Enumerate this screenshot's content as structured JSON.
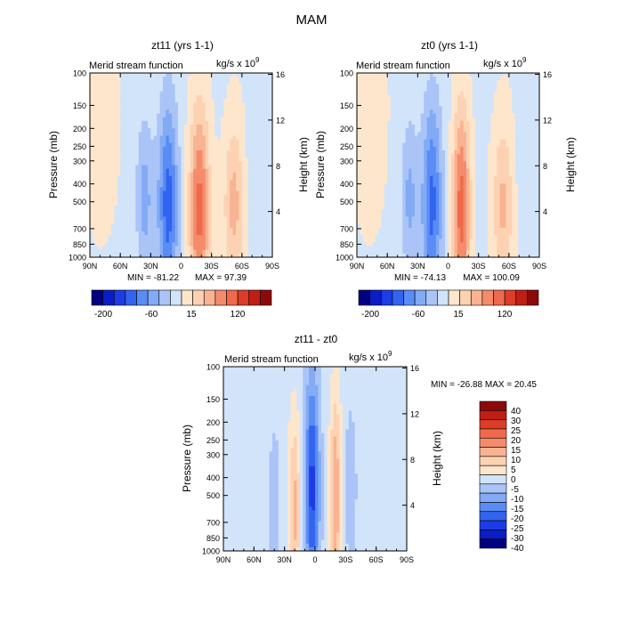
{
  "figure_title": "MAM",
  "colors": {
    "neg": [
      "#000080",
      "#0a1ec8",
      "#1e3ce6",
      "#3264f0",
      "#5a8cf5",
      "#82aaf5",
      "#aac4f8",
      "#d2e4fa"
    ],
    "pos": [
      "#fde6cc",
      "#fcd2b2",
      "#f8b392",
      "#f48c6c",
      "#ef6a4c",
      "#dc3c28",
      "#c01e14",
      "#8c0a0a"
    ],
    "frame": "#000000"
  },
  "chart_data": [
    {
      "id": "panel1",
      "type": "heatmap",
      "title": "zt11 (yrs 1-1)",
      "left_label": "Merid stream function",
      "right_label": "kg/s x 10",
      "right_label_exp": "9",
      "ylabel": "Pressure (mb)",
      "y2label": "Height (km)",
      "x_ticks": [
        "90N",
        "60N",
        "30N",
        "0",
        "30S",
        "60S",
        "90S"
      ],
      "y_ticks": [
        "100",
        "150",
        "200",
        "250",
        "300",
        "400",
        "500",
        "700",
        "850",
        "1000"
      ],
      "y2_ticks": [
        "16",
        "12",
        "8",
        "4"
      ],
      "min_text": "MIN = -81.22",
      "max_text": "MAX = 97.39",
      "colorbar_labels": [
        "-200",
        "-60",
        "15",
        "120"
      ],
      "blobs": [
        {
          "lat": -18,
          "p": 550,
          "amp": 70,
          "slat": 7,
          "slnp": 0.9
        },
        {
          "lat": 13,
          "p": 520,
          "amp": -65,
          "slat": 7,
          "slnp": 0.9
        },
        {
          "lat": -52,
          "p": 520,
          "amp": 38,
          "slat": 7,
          "slnp": 0.7
        },
        {
          "lat": 36,
          "p": 480,
          "amp": -34,
          "slat": 6,
          "slnp": 0.7
        },
        {
          "lat": -74,
          "p": 300,
          "amp": -9,
          "slat": 7,
          "slnp": 0.7
        },
        {
          "lat": 75,
          "p": 160,
          "amp": 5,
          "slat": 9,
          "slnp": 0.8
        }
      ],
      "bg_amp": -4
    },
    {
      "id": "panel2",
      "type": "heatmap",
      "title": "zt0 (yrs 1-1)",
      "left_label": "Merid stream function",
      "right_label": "kg/s x 10",
      "right_label_exp": "9",
      "ylabel": "Pressure (mb)",
      "y2label": "Height (km)",
      "x_ticks": [
        "90N",
        "60N",
        "30N",
        "0",
        "30S",
        "60S",
        "90S"
      ],
      "y_ticks": [
        "100",
        "150",
        "200",
        "250",
        "300",
        "400",
        "500",
        "700",
        "850",
        "1000"
      ],
      "y2_ticks": [
        "16",
        "12",
        "8",
        "4"
      ],
      "min_text": "MIN = -74.13",
      "max_text": "MAX = 100.09",
      "colorbar_labels": [
        "-200",
        "-60",
        "15",
        "120"
      ],
      "blobs": [
        {
          "lat": -13,
          "p": 550,
          "amp": 72,
          "slat": 6,
          "slnp": 0.9
        },
        {
          "lat": 16,
          "p": 520,
          "amp": -62,
          "slat": 7,
          "slnp": 0.9
        },
        {
          "lat": -54,
          "p": 520,
          "amp": 36,
          "slat": 7,
          "slnp": 0.7
        },
        {
          "lat": 38,
          "p": 480,
          "amp": -32,
          "slat": 6,
          "slnp": 0.7
        },
        {
          "lat": -76,
          "p": 300,
          "amp": -8,
          "slat": 7,
          "slnp": 0.7
        },
        {
          "lat": 74,
          "p": 160,
          "amp": 5,
          "slat": 9,
          "slnp": 0.8
        }
      ],
      "bg_amp": -4
    },
    {
      "id": "panel3",
      "type": "heatmap",
      "title": "zt11 - zt0",
      "left_label": "Merid stream function",
      "right_label": "kg/s x 10",
      "right_label_exp": "9",
      "ylabel": "Pressure (mb)",
      "y2label": "Height (km)",
      "x_ticks": [
        "90N",
        "60N",
        "30N",
        "0",
        "30S",
        "60S",
        "90S"
      ],
      "y_ticks": [
        "100",
        "150",
        "200",
        "250",
        "300",
        "400",
        "500",
        "700",
        "850",
        "1000"
      ],
      "y2_ticks": [
        "16",
        "12",
        "8",
        "4"
      ],
      "minmax_text": "MIN = -26.88   MAX =  20.45",
      "colorbar_labels": [
        "40",
        "30",
        "25",
        "20",
        "15",
        "10",
        "5",
        "0",
        "-5",
        "-10",
        "-15",
        "-20",
        "-25",
        "-30",
        "-40"
      ],
      "blobs": [
        {
          "lat": 3,
          "p": 450,
          "amp": -24,
          "slat": 5,
          "slnp": 1.0
        },
        {
          "lat": -20,
          "p": 500,
          "amp": 18,
          "slat": 4,
          "slnp": 0.9
        },
        {
          "lat": 20,
          "p": 600,
          "amp": 14,
          "slat": 4,
          "slnp": 0.8
        },
        {
          "lat": 40,
          "p": 550,
          "amp": -8,
          "slat": 4,
          "slnp": 0.7
        },
        {
          "lat": -35,
          "p": 450,
          "amp": -5,
          "slat": 5,
          "slnp": 0.8
        }
      ],
      "bg_amp": -3
    }
  ]
}
